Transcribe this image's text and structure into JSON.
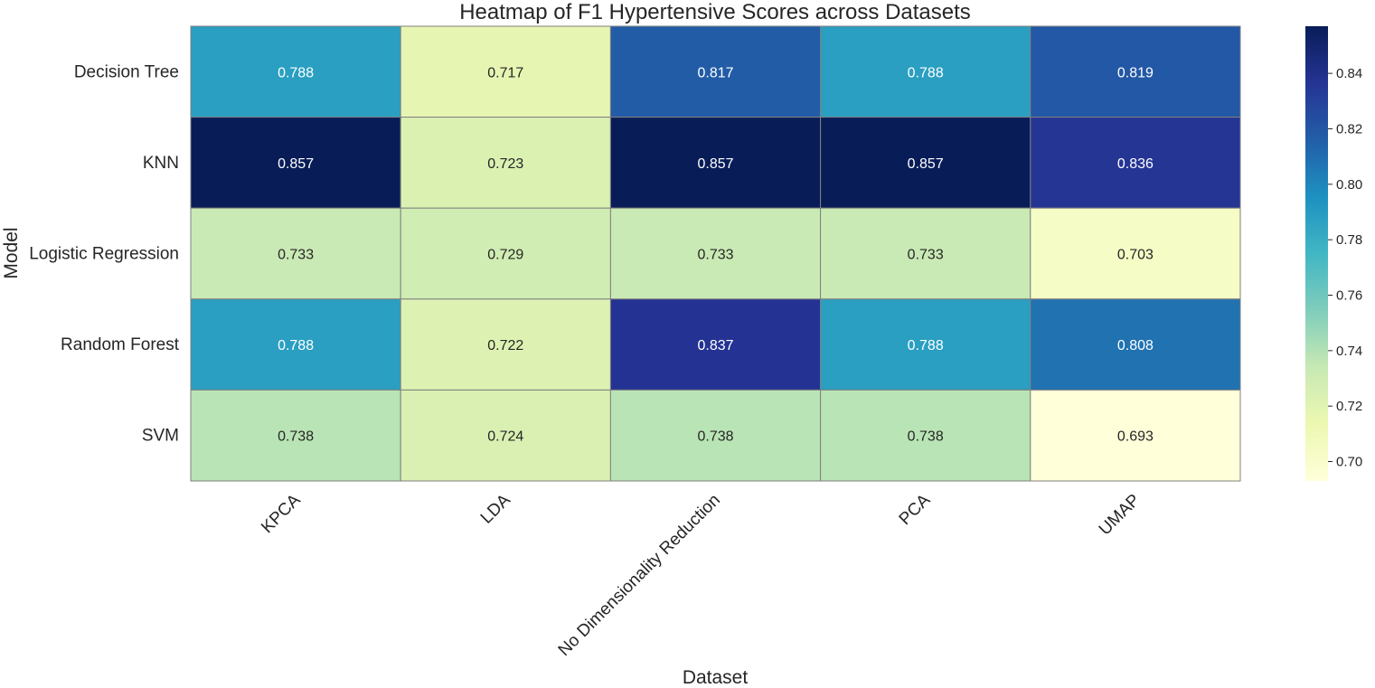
{
  "chart_data": {
    "type": "heatmap",
    "title": "Heatmap of F1 Hypertensive Scores across Datasets",
    "xlabel": "Dataset",
    "ylabel": "Model",
    "x_categories": [
      "KPCA",
      "LDA",
      "No Dimensionality Reduction",
      "PCA",
      "UMAP"
    ],
    "y_categories": [
      "Decision Tree",
      "KNN",
      "Logistic Regression",
      "Random Forest",
      "SVM"
    ],
    "values": [
      [
        0.788,
        0.717,
        0.817,
        0.788,
        0.819
      ],
      [
        0.857,
        0.723,
        0.857,
        0.857,
        0.836
      ],
      [
        0.733,
        0.729,
        0.733,
        0.733,
        0.703
      ],
      [
        0.788,
        0.722,
        0.837,
        0.788,
        0.808
      ],
      [
        0.738,
        0.724,
        0.738,
        0.738,
        0.693
      ]
    ],
    "value_format": "0.000",
    "colormap": "YlGnBu",
    "vmin": 0.693,
    "vmax": 0.857,
    "colorbar_ticks": [
      0.7,
      0.72,
      0.74,
      0.76,
      0.78,
      0.8,
      0.82,
      0.84
    ],
    "cell_border_color": "#808080"
  }
}
